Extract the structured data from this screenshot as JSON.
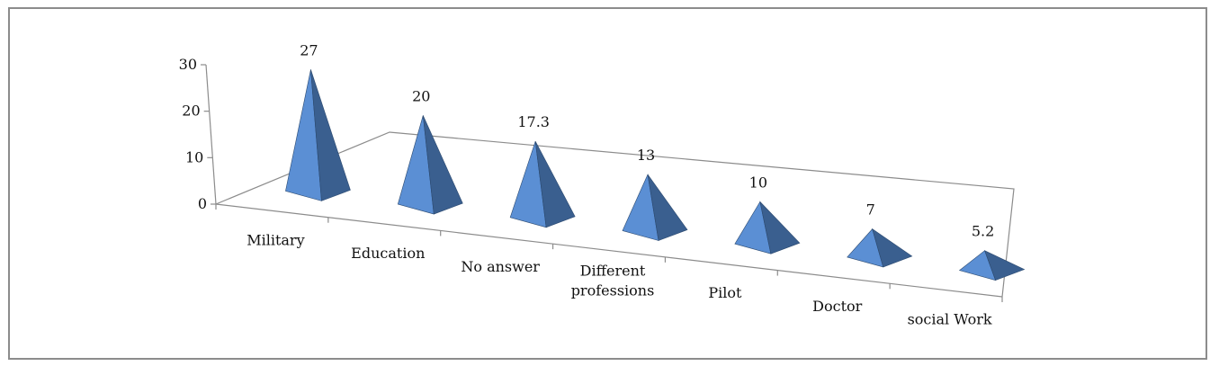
{
  "chart_data": {
    "type": "bar",
    "style": "3d-pyramid",
    "categories": [
      "Military",
      "Education",
      "No answer",
      "Different professions",
      "Pilot",
      "Doctor",
      "social Work"
    ],
    "category_lines": [
      [
        "Military"
      ],
      [
        "Education"
      ],
      [
        "No answer"
      ],
      [
        "Different",
        "professions"
      ],
      [
        "Pilot"
      ],
      [
        "Doctor"
      ],
      [
        "social Work"
      ]
    ],
    "values": [
      27,
      20,
      17.3,
      13,
      10,
      7,
      5.2
    ],
    "value_labels": [
      "27",
      "20",
      "17.3",
      "13",
      "10",
      "7",
      "5.2"
    ],
    "yticks": [
      "0",
      "10",
      "20",
      "30"
    ],
    "ylim": [
      0,
      30
    ],
    "title": "",
    "xlabel": "",
    "ylabel": "",
    "grid": false,
    "legend": "none",
    "colors": {
      "face_light": "#5b8fd4",
      "face_dark": "#3a5f8f",
      "edge": "#2c4a70",
      "axis": "#8c8c8c"
    }
  }
}
